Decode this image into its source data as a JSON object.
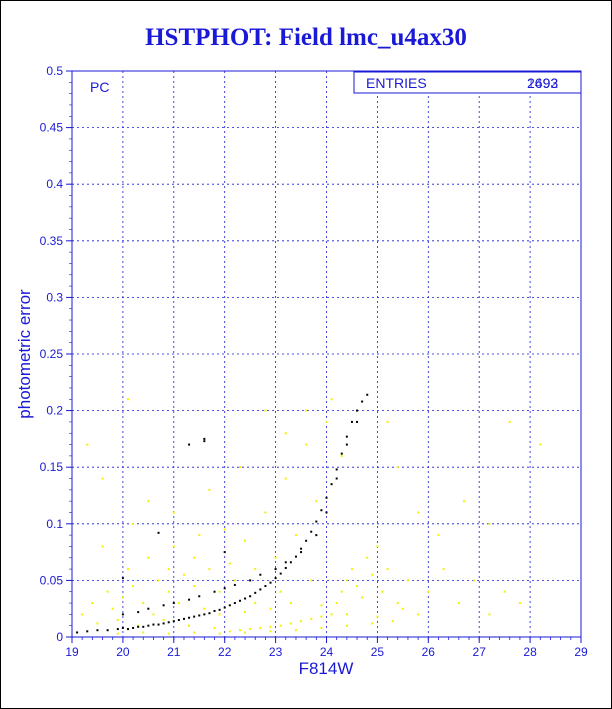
{
  "header": {
    "title": "HSTPHOT: Field lmc_u4ax30"
  },
  "panel_label": "PC",
  "stats_box": {
    "label": "ENTRIES",
    "value_a": "2693",
    "value_b": "1492"
  },
  "colors": {
    "axis": "#1a1ad6",
    "series_black": "#000000",
    "series_yellow": "#f2f200"
  },
  "chart_data": {
    "type": "scatter",
    "title": "HSTPHOT: Field lmc_u4ax30",
    "xlabel": "F814W",
    "ylabel": "photometric error",
    "xlim": [
      19,
      29
    ],
    "ylim": [
      0,
      0.5
    ],
    "xticks": [
      19,
      20,
      21,
      22,
      23,
      24,
      25,
      26,
      27,
      28,
      29
    ],
    "yticks": [
      0,
      0.05,
      0.1,
      0.15,
      0.2,
      0.25,
      0.3,
      0.35,
      0.4,
      0.45,
      0.5
    ],
    "grid": true,
    "series": [
      {
        "color": "#000000",
        "points": [
          [
            19.1,
            0.004
          ],
          [
            19.3,
            0.005
          ],
          [
            19.5,
            0.006
          ],
          [
            19.7,
            0.006
          ],
          [
            19.9,
            0.007
          ],
          [
            20.0,
            0.008
          ],
          [
            20.1,
            0.007
          ],
          [
            20.2,
            0.008
          ],
          [
            20.3,
            0.009
          ],
          [
            20.4,
            0.009
          ],
          [
            20.5,
            0.01
          ],
          [
            20.6,
            0.011
          ],
          [
            20.7,
            0.011
          ],
          [
            20.8,
            0.012
          ],
          [
            20.9,
            0.013
          ],
          [
            21.0,
            0.014
          ],
          [
            21.1,
            0.015
          ],
          [
            21.2,
            0.016
          ],
          [
            21.3,
            0.017
          ],
          [
            21.4,
            0.018
          ],
          [
            21.5,
            0.019
          ],
          [
            21.6,
            0.02
          ],
          [
            21.7,
            0.021
          ],
          [
            21.8,
            0.023
          ],
          [
            21.9,
            0.024
          ],
          [
            22.0,
            0.026
          ],
          [
            22.1,
            0.028
          ],
          [
            22.2,
            0.03
          ],
          [
            22.3,
            0.032
          ],
          [
            22.4,
            0.034
          ],
          [
            22.5,
            0.036
          ],
          [
            22.6,
            0.039
          ],
          [
            22.7,
            0.042
          ],
          [
            22.8,
            0.045
          ],
          [
            22.9,
            0.048
          ],
          [
            23.0,
            0.052
          ],
          [
            23.1,
            0.056
          ],
          [
            23.2,
            0.061
          ],
          [
            23.3,
            0.066
          ],
          [
            23.4,
            0.071
          ],
          [
            23.5,
            0.078
          ],
          [
            23.6,
            0.085
          ],
          [
            23.7,
            0.093
          ],
          [
            23.8,
            0.102
          ],
          [
            23.9,
            0.112
          ],
          [
            24.0,
            0.123
          ],
          [
            24.1,
            0.135
          ],
          [
            24.2,
            0.148
          ],
          [
            24.3,
            0.162
          ],
          [
            24.4,
            0.177
          ],
          [
            24.5,
            0.19
          ],
          [
            24.6,
            0.2
          ],
          [
            24.7,
            0.208
          ],
          [
            24.8,
            0.214
          ],
          [
            20.0,
            0.02
          ],
          [
            20.3,
            0.022
          ],
          [
            20.5,
            0.025
          ],
          [
            20.8,
            0.028
          ],
          [
            21.0,
            0.03
          ],
          [
            21.3,
            0.033
          ],
          [
            21.5,
            0.036
          ],
          [
            21.8,
            0.04
          ],
          [
            22.0,
            0.043
          ],
          [
            22.2,
            0.046
          ],
          [
            22.5,
            0.05
          ],
          [
            22.7,
            0.055
          ],
          [
            23.0,
            0.06
          ],
          [
            23.2,
            0.066
          ],
          [
            23.5,
            0.075
          ],
          [
            23.8,
            0.09
          ],
          [
            24.0,
            0.11
          ],
          [
            24.2,
            0.14
          ],
          [
            24.4,
            0.17
          ],
          [
            24.6,
            0.19
          ],
          [
            21.3,
            0.17
          ],
          [
            21.6,
            0.173
          ],
          [
            21.6,
            0.175
          ],
          [
            20.7,
            0.092
          ],
          [
            20.0,
            0.052
          ],
          [
            22.0,
            0.075
          ]
        ]
      },
      {
        "color": "#f2f200",
        "points": [
          [
            19.2,
            0.02
          ],
          [
            19.4,
            0.03
          ],
          [
            19.5,
            0.012
          ],
          [
            19.7,
            0.04
          ],
          [
            19.8,
            0.025
          ],
          [
            19.9,
            0.015
          ],
          [
            20.0,
            0.035
          ],
          [
            20.1,
            0.06
          ],
          [
            20.2,
            0.045
          ],
          [
            20.3,
            0.01
          ],
          [
            20.4,
            0.03
          ],
          [
            20.5,
            0.07
          ],
          [
            20.6,
            0.02
          ],
          [
            20.7,
            0.05
          ],
          [
            20.8,
            0.015
          ],
          [
            20.9,
            0.04
          ],
          [
            21.0,
            0.08
          ],
          [
            21.1,
            0.03
          ],
          [
            21.2,
            0.055
          ],
          [
            21.3,
            0.01
          ],
          [
            21.4,
            0.045
          ],
          [
            21.5,
            0.09
          ],
          [
            21.6,
            0.025
          ],
          [
            21.7,
            0.06
          ],
          [
            21.8,
            0.008
          ],
          [
            21.9,
            0.04
          ],
          [
            22.0,
            0.095
          ],
          [
            22.1,
            0.005
          ],
          [
            22.2,
            0.05
          ],
          [
            22.3,
            0.006
          ],
          [
            22.4,
            0.085
          ],
          [
            22.5,
            0.007
          ],
          [
            22.6,
            0.06
          ],
          [
            22.7,
            0.008
          ],
          [
            22.8,
            0.11
          ],
          [
            22.9,
            0.009
          ],
          [
            23.0,
            0.07
          ],
          [
            23.1,
            0.01
          ],
          [
            23.2,
            0.14
          ],
          [
            23.3,
            0.012
          ],
          [
            23.4,
            0.09
          ],
          [
            23.5,
            0.014
          ],
          [
            23.6,
            0.17
          ],
          [
            23.7,
            0.016
          ],
          [
            23.8,
            0.12
          ],
          [
            23.9,
            0.018
          ],
          [
            24.0,
            0.19
          ],
          [
            24.1,
            0.02
          ],
          [
            24.2,
            0.03
          ],
          [
            24.3,
            0.04
          ],
          [
            24.4,
            0.05
          ],
          [
            24.5,
            0.06
          ],
          [
            24.6,
            0.045
          ],
          [
            24.7,
            0.035
          ],
          [
            24.8,
            0.07
          ],
          [
            24.9,
            0.055
          ],
          [
            25.0,
            0.08
          ],
          [
            25.1,
            0.04
          ],
          [
            25.2,
            0.06
          ],
          [
            25.4,
            0.03
          ],
          [
            25.6,
            0.05
          ],
          [
            25.8,
            0.02
          ],
          [
            26.0,
            0.04
          ],
          [
            26.3,
            0.06
          ],
          [
            26.6,
            0.03
          ],
          [
            26.9,
            0.05
          ],
          [
            27.2,
            0.02
          ],
          [
            27.5,
            0.04
          ],
          [
            27.8,
            0.03
          ],
          [
            19.3,
            0.17
          ],
          [
            19.6,
            0.14
          ],
          [
            20.1,
            0.21
          ],
          [
            20.5,
            0.12
          ],
          [
            21.0,
            0.11
          ],
          [
            21.7,
            0.13
          ],
          [
            22.3,
            0.15
          ],
          [
            22.8,
            0.2
          ],
          [
            23.2,
            0.18
          ],
          [
            23.6,
            0.2
          ],
          [
            24.1,
            0.21
          ],
          [
            24.3,
            0.16
          ],
          [
            25.4,
            0.15
          ],
          [
            25.8,
            0.11
          ],
          [
            26.2,
            0.09
          ],
          [
            26.7,
            0.12
          ],
          [
            27.2,
            0.1
          ],
          [
            27.6,
            0.19
          ],
          [
            28.2,
            0.17
          ],
          [
            25.2,
            0.19
          ],
          [
            19.6,
            0.08
          ],
          [
            20.2,
            0.1
          ],
          [
            20.9,
            0.06
          ],
          [
            21.4,
            0.07
          ],
          [
            22.1,
            0.065
          ],
          [
            22.6,
            0.03
          ],
          [
            23.1,
            0.04
          ],
          [
            23.7,
            0.05
          ],
          [
            21.9,
            0.02
          ],
          [
            22.4,
            0.022
          ],
          [
            22.9,
            0.025
          ],
          [
            23.3,
            0.03
          ],
          [
            23.9,
            0.028
          ],
          [
            24.4,
            0.02
          ],
          [
            25.0,
            0.018
          ],
          [
            25.5,
            0.025
          ],
          [
            19.9,
            0.003
          ],
          [
            20.4,
            0.004
          ],
          [
            20.9,
            0.003
          ],
          [
            21.4,
            0.004
          ],
          [
            21.9,
            0.003
          ],
          [
            22.4,
            0.004
          ],
          [
            22.9,
            0.005
          ],
          [
            23.4,
            0.006
          ],
          [
            23.9,
            0.008
          ],
          [
            24.4,
            0.01
          ],
          [
            24.9,
            0.012
          ],
          [
            25.3,
            0.014
          ]
        ]
      }
    ]
  }
}
